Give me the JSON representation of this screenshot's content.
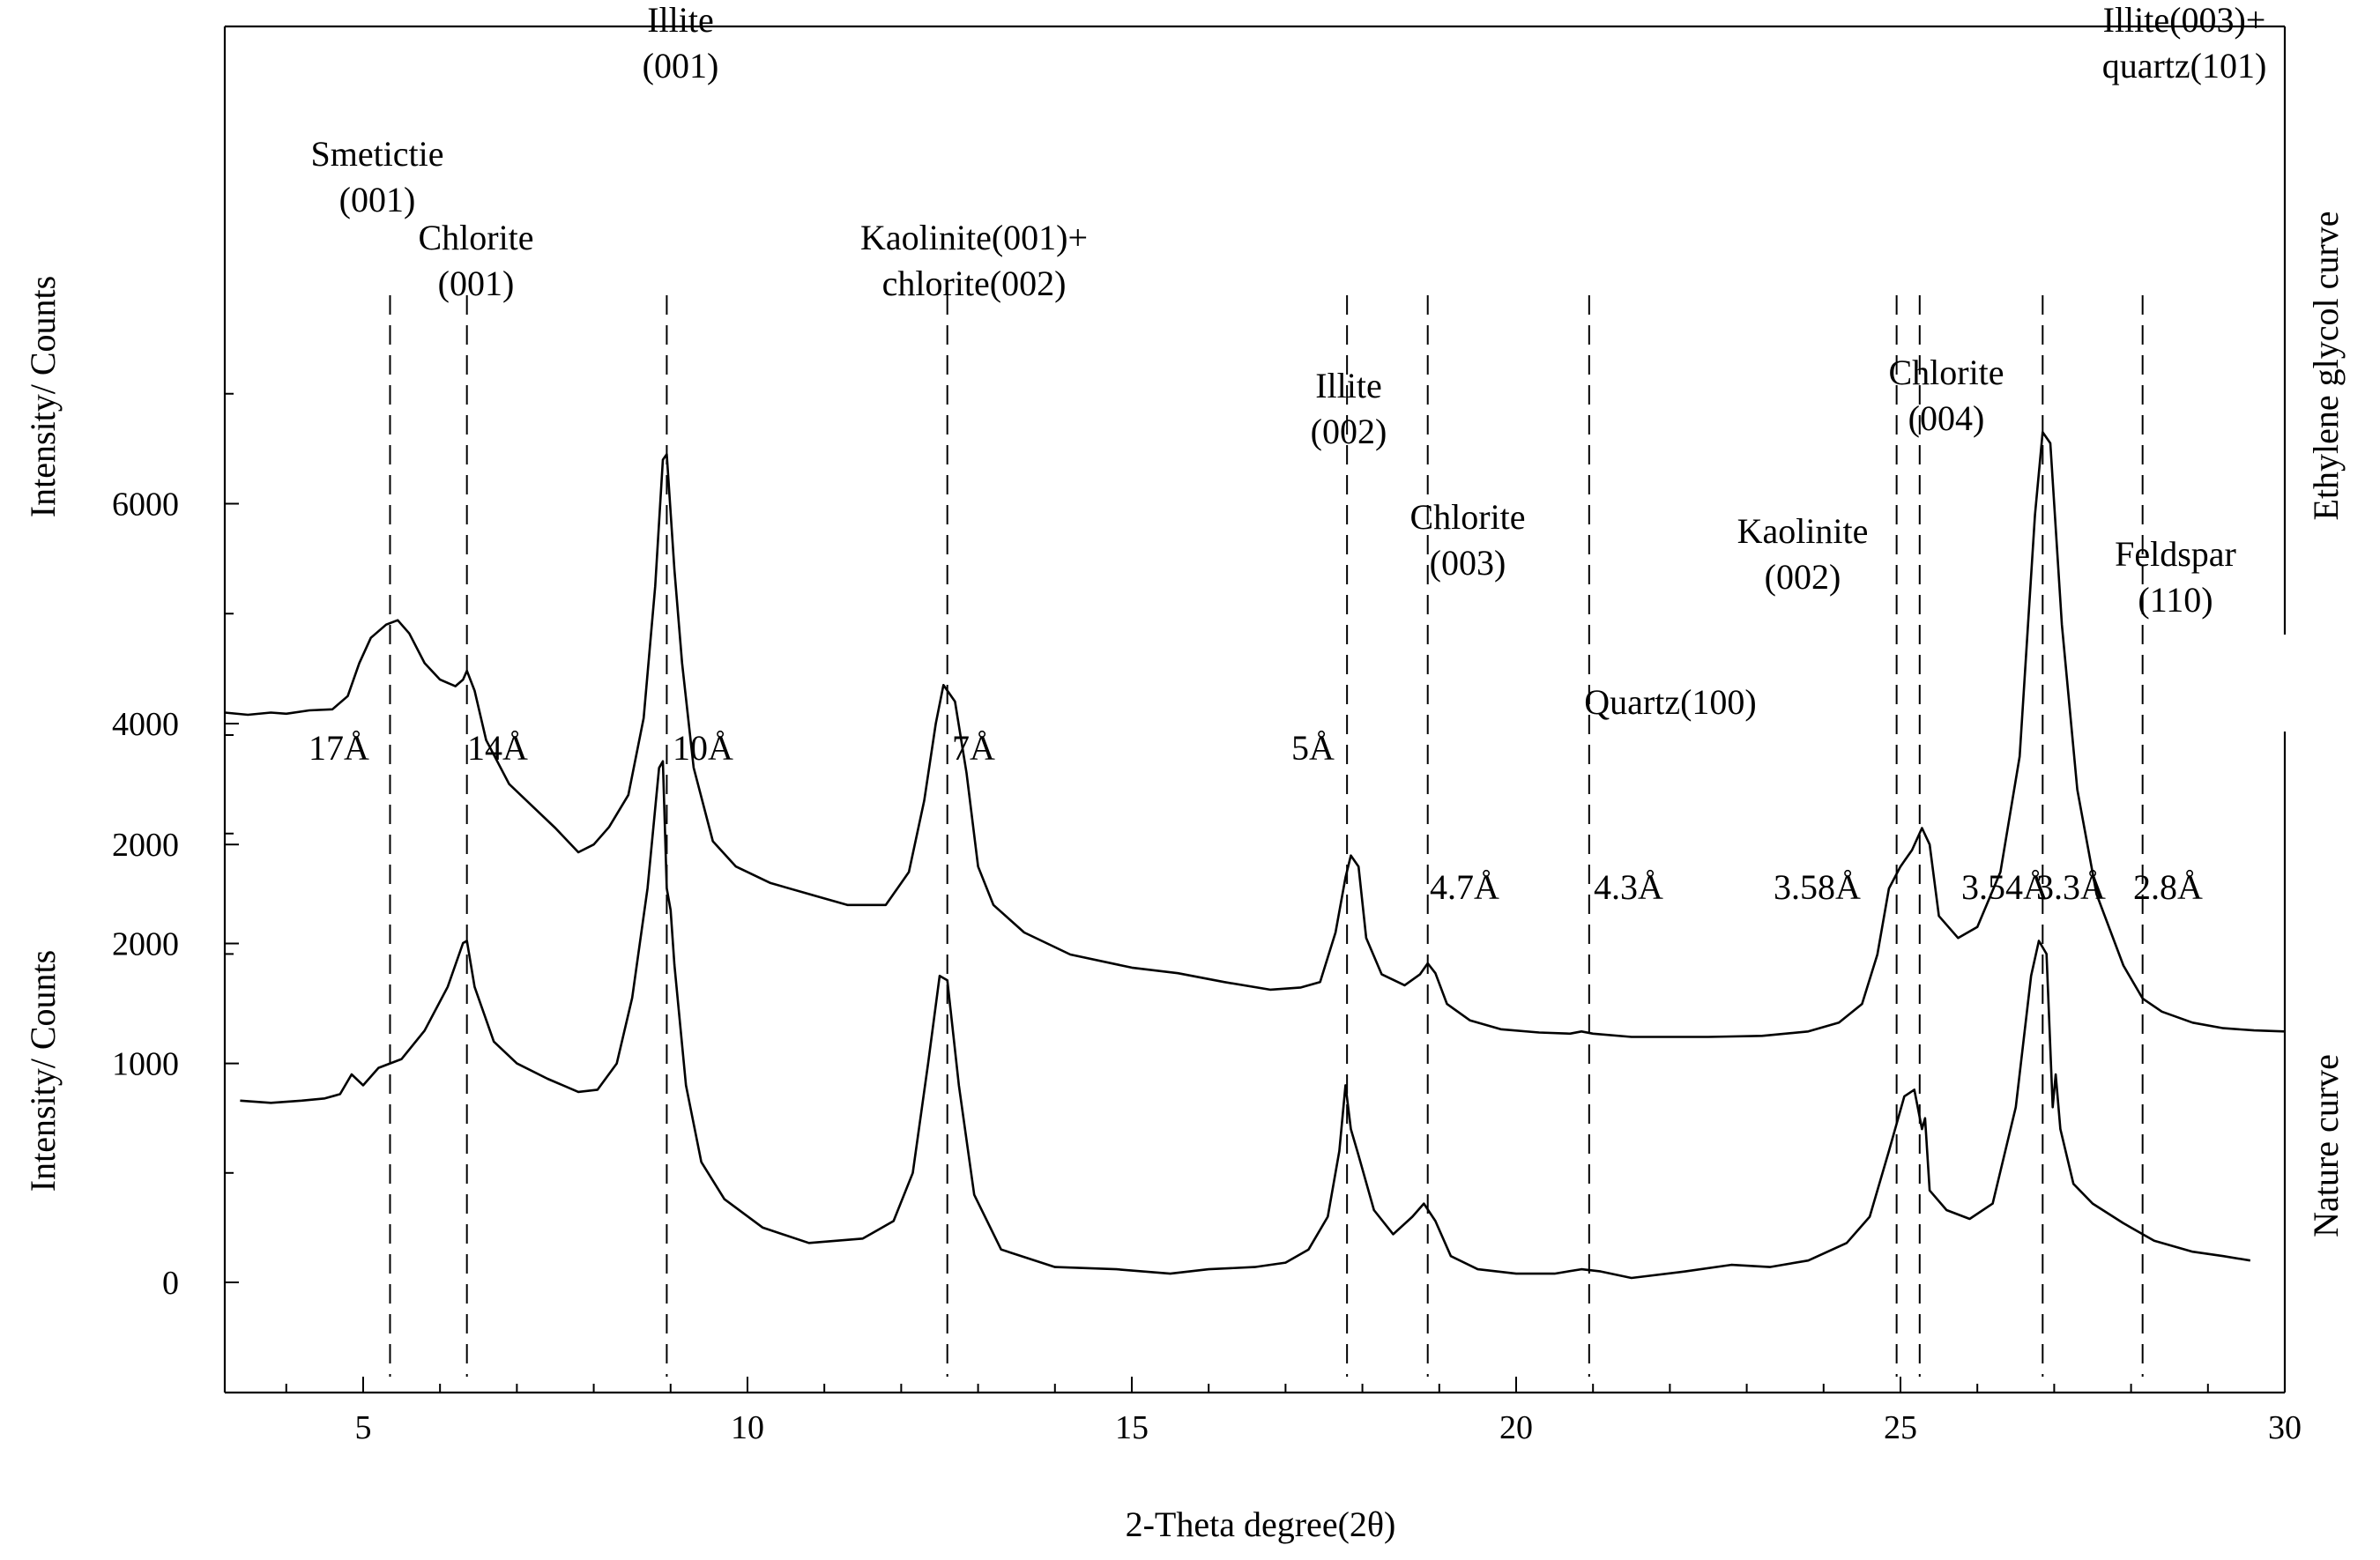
{
  "chart_data": {
    "type": "line",
    "xlabel": "2-Theta degree(2θ)",
    "xlim": [
      3.2,
      30
    ],
    "x_ticks": [
      5,
      10,
      15,
      20,
      25,
      30
    ],
    "series": [
      {
        "name": "Ethylene glycol curve",
        "ylabel": "Intensity/ Counts",
        "ylim": [
          1000,
          7000
        ],
        "y_ticks": [
          2000,
          4000,
          6000
        ],
        "points": [
          [
            3.2,
            4100
          ],
          [
            3.5,
            4080
          ],
          [
            3.8,
            4100
          ],
          [
            4.0,
            4090
          ],
          [
            4.3,
            4120
          ],
          [
            4.6,
            4130
          ],
          [
            4.8,
            4250
          ],
          [
            4.95,
            4550
          ],
          [
            5.1,
            4780
          ],
          [
            5.3,
            4900
          ],
          [
            5.45,
            4940
          ],
          [
            5.6,
            4820
          ],
          [
            5.8,
            4550
          ],
          [
            6.0,
            4400
          ],
          [
            6.2,
            4340
          ],
          [
            6.3,
            4400
          ],
          [
            6.35,
            4480
          ],
          [
            6.45,
            4300
          ],
          [
            6.6,
            3850
          ],
          [
            6.9,
            3450
          ],
          [
            7.2,
            3250
          ],
          [
            7.5,
            3050
          ],
          [
            7.8,
            2830
          ],
          [
            8.0,
            2900
          ],
          [
            8.2,
            3060
          ],
          [
            8.45,
            3350
          ],
          [
            8.65,
            4050
          ],
          [
            8.8,
            5250
          ],
          [
            8.9,
            6400
          ],
          [
            8.95,
            6450
          ],
          [
            9.05,
            5400
          ],
          [
            9.15,
            4550
          ],
          [
            9.3,
            3600
          ],
          [
            9.55,
            2930
          ],
          [
            9.85,
            2700
          ],
          [
            10.3,
            2550
          ],
          [
            10.8,
            2450
          ],
          [
            11.3,
            2350
          ],
          [
            11.8,
            2350
          ],
          [
            12.1,
            2650
          ],
          [
            12.3,
            3300
          ],
          [
            12.45,
            4000
          ],
          [
            12.55,
            4350
          ],
          [
            12.7,
            4200
          ],
          [
            12.85,
            3550
          ],
          [
            13.0,
            2700
          ],
          [
            13.2,
            2350
          ],
          [
            13.6,
            2100
          ],
          [
            14.2,
            1900
          ],
          [
            15.0,
            1780
          ],
          [
            15.6,
            1730
          ],
          [
            16.2,
            1650
          ],
          [
            16.8,
            1580
          ],
          [
            17.2,
            1600
          ],
          [
            17.45,
            1650
          ],
          [
            17.65,
            2100
          ],
          [
            17.78,
            2600
          ],
          [
            17.85,
            2800
          ],
          [
            17.95,
            2700
          ],
          [
            18.05,
            2050
          ],
          [
            18.25,
            1720
          ],
          [
            18.55,
            1620
          ],
          [
            18.75,
            1720
          ],
          [
            18.85,
            1820
          ],
          [
            18.95,
            1730
          ],
          [
            19.1,
            1450
          ],
          [
            19.4,
            1300
          ],
          [
            19.8,
            1220
          ],
          [
            20.3,
            1190
          ],
          [
            20.7,
            1180
          ],
          [
            20.85,
            1200
          ],
          [
            21.0,
            1180
          ],
          [
            21.5,
            1150
          ],
          [
            22.5,
            1150
          ],
          [
            23.2,
            1160
          ],
          [
            23.8,
            1200
          ],
          [
            24.2,
            1280
          ],
          [
            24.5,
            1450
          ],
          [
            24.7,
            1900
          ],
          [
            24.85,
            2500
          ],
          [
            25.0,
            2700
          ],
          [
            25.15,
            2850
          ],
          [
            25.28,
            3050
          ],
          [
            25.38,
            2900
          ],
          [
            25.5,
            2250
          ],
          [
            25.75,
            2050
          ],
          [
            26.0,
            2150
          ],
          [
            26.3,
            2650
          ],
          [
            26.55,
            3700
          ],
          [
            26.75,
            5900
          ],
          [
            26.85,
            6650
          ],
          [
            26.95,
            6550
          ],
          [
            27.1,
            4900
          ],
          [
            27.3,
            3400
          ],
          [
            27.55,
            2450
          ],
          [
            27.9,
            1800
          ],
          [
            28.15,
            1500
          ],
          [
            28.4,
            1380
          ],
          [
            28.8,
            1280
          ],
          [
            29.2,
            1230
          ],
          [
            29.6,
            1210
          ],
          [
            30.0,
            1200
          ]
        ]
      },
      {
        "name": "Nature curve",
        "ylabel": "Intensity/ Counts",
        "ylim": [
          -500,
          2500
        ],
        "y_ticks": [
          0,
          1000,
          2000
        ],
        "points": [
          [
            3.4,
            830
          ],
          [
            3.8,
            820
          ],
          [
            4.2,
            830
          ],
          [
            4.5,
            840
          ],
          [
            4.7,
            860
          ],
          [
            4.85,
            950
          ],
          [
            5.0,
            900
          ],
          [
            5.2,
            980
          ],
          [
            5.5,
            1020
          ],
          [
            5.8,
            1150
          ],
          [
            6.1,
            1350
          ],
          [
            6.3,
            1550
          ],
          [
            6.35,
            1560
          ],
          [
            6.45,
            1350
          ],
          [
            6.7,
            1100
          ],
          [
            7.0,
            1000
          ],
          [
            7.4,
            930
          ],
          [
            7.8,
            870
          ],
          [
            8.05,
            880
          ],
          [
            8.3,
            1000
          ],
          [
            8.5,
            1300
          ],
          [
            8.7,
            1800
          ],
          [
            8.85,
            2350
          ],
          [
            8.9,
            2380
          ],
          [
            8.95,
            1800
          ],
          [
            9.0,
            1700
          ],
          [
            9.05,
            1450
          ],
          [
            9.2,
            900
          ],
          [
            9.4,
            550
          ],
          [
            9.7,
            380
          ],
          [
            10.2,
            250
          ],
          [
            10.8,
            180
          ],
          [
            11.5,
            200
          ],
          [
            11.9,
            280
          ],
          [
            12.15,
            500
          ],
          [
            12.35,
            1000
          ],
          [
            12.5,
            1400
          ],
          [
            12.6,
            1380
          ],
          [
            12.75,
            900
          ],
          [
            12.95,
            400
          ],
          [
            13.3,
            150
          ],
          [
            14.0,
            70
          ],
          [
            14.8,
            60
          ],
          [
            15.5,
            40
          ],
          [
            16.0,
            60
          ],
          [
            16.6,
            70
          ],
          [
            17.0,
            90
          ],
          [
            17.3,
            150
          ],
          [
            17.55,
            300
          ],
          [
            17.7,
            600
          ],
          [
            17.78,
            900
          ],
          [
            17.85,
            700
          ],
          [
            17.95,
            580
          ],
          [
            18.15,
            330
          ],
          [
            18.4,
            220
          ],
          [
            18.65,
            300
          ],
          [
            18.8,
            360
          ],
          [
            18.95,
            280
          ],
          [
            19.15,
            120
          ],
          [
            19.5,
            60
          ],
          [
            20.0,
            40
          ],
          [
            20.5,
            40
          ],
          [
            20.85,
            60
          ],
          [
            21.1,
            50
          ],
          [
            21.5,
            20
          ],
          [
            22.2,
            50
          ],
          [
            22.8,
            80
          ],
          [
            23.3,
            70
          ],
          [
            23.8,
            100
          ],
          [
            24.3,
            180
          ],
          [
            24.6,
            300
          ],
          [
            24.85,
            600
          ],
          [
            25.05,
            850
          ],
          [
            25.18,
            880
          ],
          [
            25.28,
            700
          ],
          [
            25.32,
            750
          ],
          [
            25.38,
            420
          ],
          [
            25.6,
            330
          ],
          [
            25.9,
            290
          ],
          [
            26.2,
            360
          ],
          [
            26.5,
            800
          ],
          [
            26.7,
            1400
          ],
          [
            26.8,
            1560
          ],
          [
            26.9,
            1500
          ],
          [
            26.98,
            800
          ],
          [
            27.02,
            950
          ],
          [
            27.08,
            700
          ],
          [
            27.25,
            450
          ],
          [
            27.5,
            360
          ],
          [
            27.9,
            270
          ],
          [
            28.3,
            190
          ],
          [
            28.8,
            140
          ],
          [
            29.2,
            120
          ],
          [
            29.55,
            100
          ]
        ]
      }
    ],
    "top_panel_right_label": "Ethylene glycol curve",
    "bottom_panel_right_label": "Nature curve",
    "peak_lines": [
      {
        "x": 5.35,
        "d_label": "17Å"
      },
      {
        "x": 6.35,
        "d_label": "14Å"
      },
      {
        "x": 8.95,
        "d_label": "10Å"
      },
      {
        "x": 12.6,
        "d_label": "7Å"
      },
      {
        "x": 17.8,
        "d_label": "5Å"
      },
      {
        "x": 18.85,
        "d_label": "4.7Å"
      },
      {
        "x": 20.95,
        "d_label": "4.3Å"
      },
      {
        "x": 24.95,
        "d_label": "3.58Å"
      },
      {
        "x": 25.25,
        "d_label": "3.54Å"
      },
      {
        "x": 26.85,
        "d_label": "3.3Å"
      },
      {
        "x": 28.15,
        "d_label": "2.8Å"
      }
    ],
    "annotations": [
      {
        "lines": [
          "Smetictie",
          "(001)"
        ]
      },
      {
        "lines": [
          "Chlorite",
          "(001)"
        ]
      },
      {
        "lines": [
          "Illite",
          "(001)"
        ]
      },
      {
        "lines": [
          "Kaolinite(001)+",
          "chlorite(002)"
        ]
      },
      {
        "lines": [
          "Illite",
          "(002)"
        ]
      },
      {
        "lines": [
          "Chlorite",
          "(003)"
        ]
      },
      {
        "lines": [
          "Quartz(100)"
        ]
      },
      {
        "lines": [
          "Kaolinite",
          "(002)"
        ]
      },
      {
        "lines": [
          "Chlorite",
          "(004)"
        ]
      },
      {
        "lines": [
          "Illite(003)+",
          "quartz(101)"
        ]
      },
      {
        "lines": [
          "Feldspar",
          "(110)"
        ]
      }
    ]
  }
}
